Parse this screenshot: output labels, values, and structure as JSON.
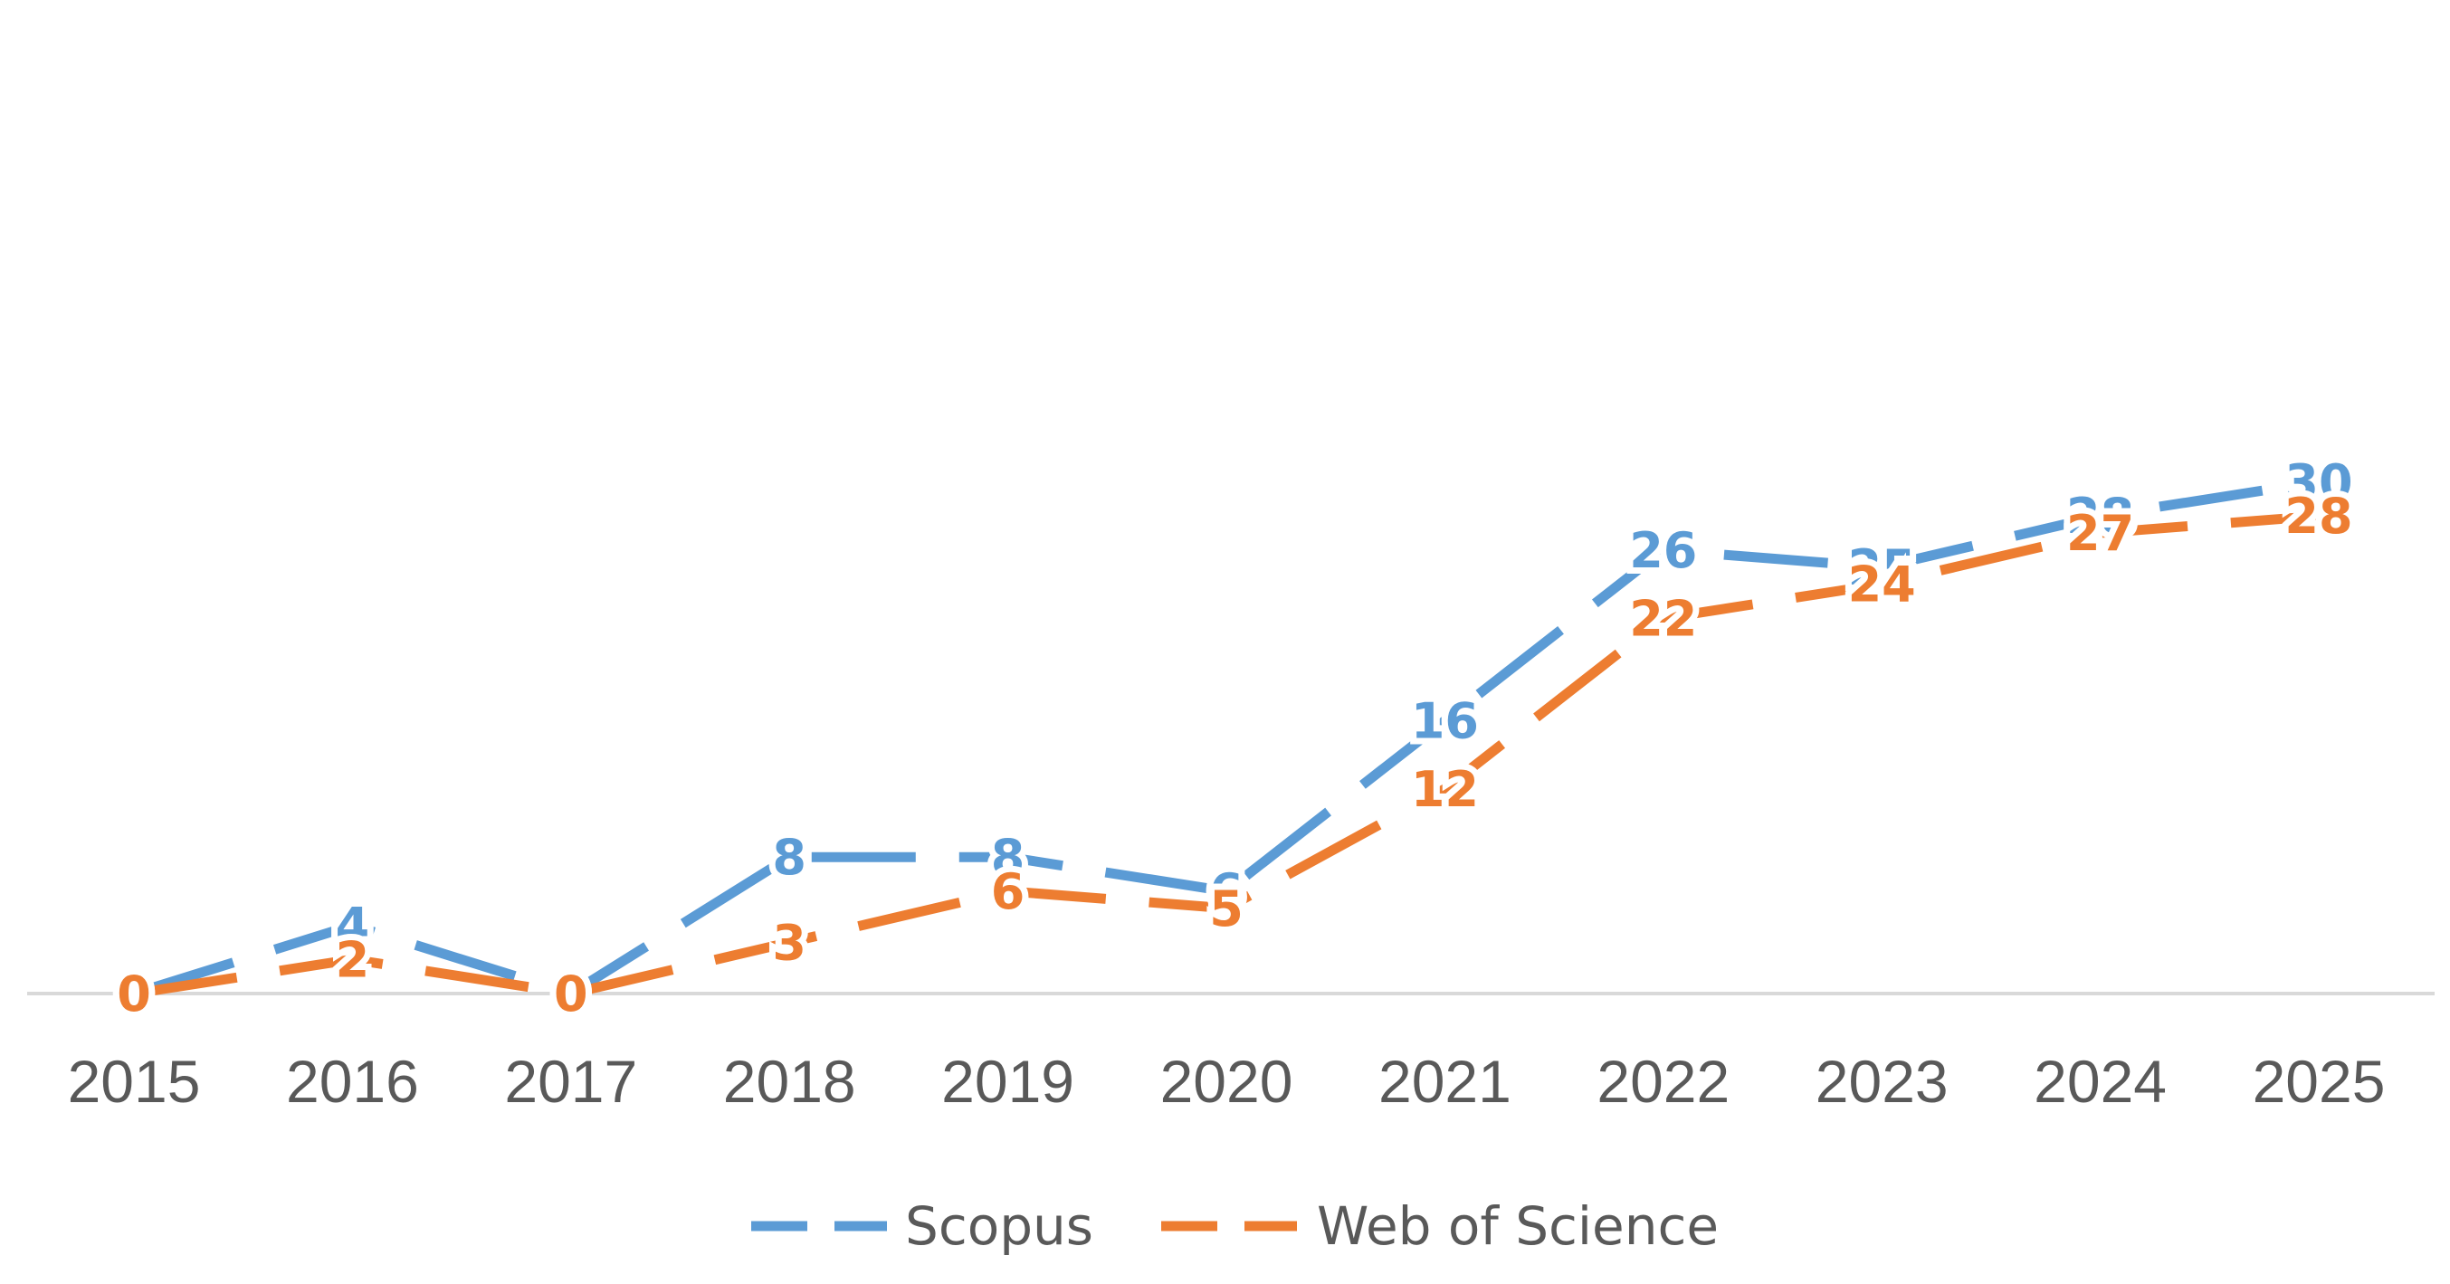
{
  "colors": {
    "scopus": "#5B9BD5",
    "web_of_science": "#ED7D31",
    "axis": "#D9D9D9",
    "tick_text": "#595959"
  },
  "chart_data": {
    "type": "line",
    "title": "",
    "xlabel": "",
    "ylabel": "",
    "categories": [
      "2015",
      "2016",
      "2017",
      "2018",
      "2019",
      "2020",
      "2021",
      "2022",
      "2023",
      "2024",
      "2025"
    ],
    "series": [
      {
        "name": "Scopus",
        "color": "#5B9BD5",
        "line_style": "dashed",
        "values": [
          0,
          4,
          0,
          8,
          8,
          6,
          16,
          26,
          25,
          28,
          30
        ]
      },
      {
        "name": "Web of Science",
        "color": "#ED7D31",
        "line_style": "dashed",
        "values": [
          0,
          2,
          0,
          3,
          6,
          5,
          12,
          22,
          24,
          27,
          28
        ]
      }
    ],
    "data_labels": true,
    "grid": false,
    "y_axis_visible": false,
    "legend_placement": "bottom-center"
  }
}
